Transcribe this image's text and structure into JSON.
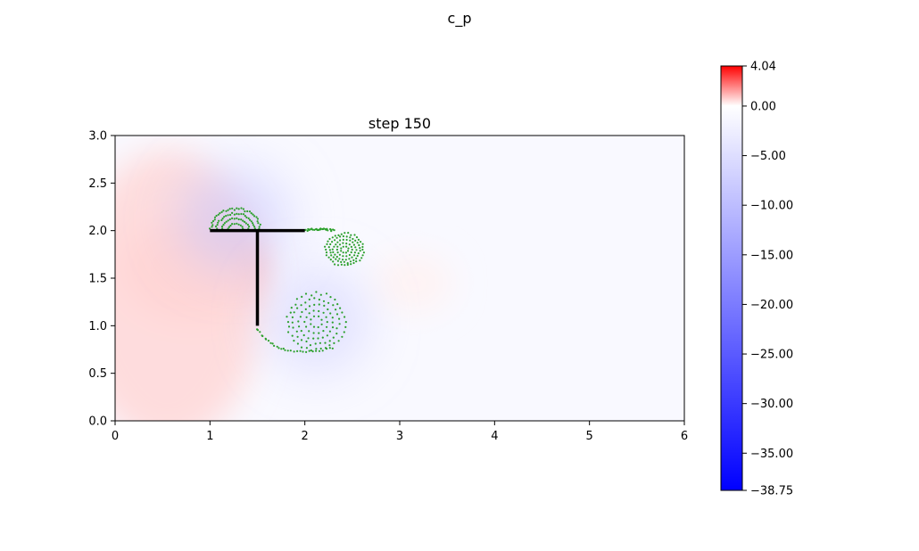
{
  "figure": {
    "suptitle": "c_p"
  },
  "chart_data": {
    "type": "heatmap",
    "title": "step 150",
    "xlabel": "",
    "ylabel": "",
    "xlim": [
      0,
      6
    ],
    "ylim": [
      0,
      3
    ],
    "x_ticks": [
      0,
      1,
      2,
      3,
      4,
      5,
      6
    ],
    "x_tick_labels": [
      "0",
      "1",
      "2",
      "3",
      "4",
      "5",
      "6"
    ],
    "y_ticks": [
      0.0,
      0.5,
      1.0,
      1.5,
      2.0,
      2.5,
      3.0
    ],
    "y_tick_labels": [
      "0.0",
      "0.5",
      "1.0",
      "1.5",
      "2.0",
      "2.5",
      "3.0"
    ],
    "grid": false,
    "colormap": "bwr",
    "colors": {
      "min": "#0000ff",
      "zero": "#ffffff",
      "max": "#ff0000",
      "particles": "#2ca02c",
      "walls": "#000000"
    },
    "value_range": [
      -38.75,
      4.04
    ],
    "colorbar": {
      "ticks": [
        4.04,
        0.0,
        -5.0,
        -10.0,
        -15.0,
        -20.0,
        -25.0,
        -30.0,
        -35.0,
        -38.75
      ],
      "tick_labels": [
        "4.04",
        "0.00",
        "−5.00",
        "−10.00",
        "−15.00",
        "−20.00",
        "−25.00",
        "−30.00",
        "−35.00",
        "−38.75"
      ]
    },
    "field_regions": [
      {
        "name": "high-pressure-core",
        "cx": 0.8,
        "cy": 1.6,
        "rx": 0.75,
        "ry": 0.55,
        "value": 1.4
      },
      {
        "name": "high-pressure-halo",
        "cx": 0.55,
        "cy": 1.3,
        "rx": 1.0,
        "ry": 1.55,
        "value": 0.6
      },
      {
        "name": "high-pressure-blob",
        "cx": 3.15,
        "cy": 1.45,
        "rx": 0.4,
        "ry": 0.3,
        "value": 0.2
      },
      {
        "name": "vortex-top",
        "cx": 1.25,
        "cy": 2.12,
        "rx": 0.6,
        "ry": 0.55,
        "value": -3.0
      },
      {
        "name": "vortex-bottom",
        "cx": 2.12,
        "cy": 1.05,
        "rx": 0.55,
        "ry": 0.55,
        "value": -2.5
      }
    ],
    "walls": [
      {
        "x": [
          1.0,
          2.0
        ],
        "y": [
          2.0,
          2.0
        ]
      },
      {
        "x": [
          1.5,
          1.5
        ],
        "y": [
          2.0,
          1.0
        ]
      }
    ],
    "vortices": [
      {
        "type": "cap",
        "cx": 1.27,
        "cy": 2.0,
        "rx": 0.26,
        "ry": 0.23
      },
      {
        "type": "ring",
        "cx": 2.12,
        "cy": 1.04,
        "rx": 0.3,
        "ry": 0.3
      },
      {
        "type": "ring",
        "cx": 2.42,
        "cy": 1.8,
        "rx": 0.2,
        "ry": 0.17
      }
    ],
    "shear_layers": [
      {
        "from": [
          1.5,
          0.97
        ],
        "ctrl": [
          1.7,
          0.62
        ],
        "to": [
          2.3,
          0.77
        ]
      },
      {
        "from": [
          2.0,
          2.0
        ],
        "ctrl": [
          2.15,
          2.03
        ],
        "to": [
          2.3,
          2.0
        ]
      }
    ]
  }
}
